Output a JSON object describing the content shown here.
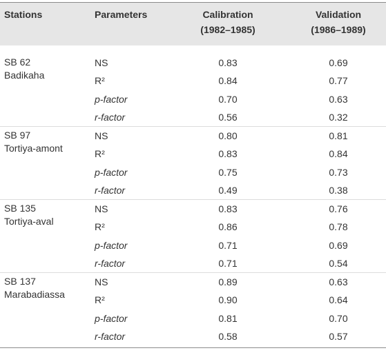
{
  "table": {
    "headers": {
      "stations": "Stations",
      "parameters": "Parameters",
      "calibration": [
        "Calibration",
        "(1982–1985)"
      ],
      "validation": [
        "Validation",
        "(1986–1989)"
      ]
    },
    "groups": [
      {
        "code": "SB 62",
        "name": "Badikaha",
        "rows": [
          [
            "NS",
            "0.83",
            "0.69"
          ],
          [
            "R²",
            "0.84",
            "0.77"
          ],
          [
            "p-factor",
            "0.70",
            "0.63"
          ],
          [
            "r-factor",
            "0.56",
            "0.32"
          ]
        ]
      },
      {
        "code": "SB 97",
        "name": "Tortiya-amont",
        "rows": [
          [
            "NS",
            "0.80",
            "0.81"
          ],
          [
            "R²",
            "0.83",
            "0.84"
          ],
          [
            "p-factor",
            "0.75",
            "0.73"
          ],
          [
            "r-factor",
            "0.49",
            "0.38"
          ]
        ]
      },
      {
        "code": "SB 135",
        "name": "Tortiya-aval",
        "rows": [
          [
            "NS",
            "0.83",
            "0.76"
          ],
          [
            "R²",
            "0.86",
            "0.78"
          ],
          [
            "p-factor",
            "0.71",
            "0.69"
          ],
          [
            "r-factor",
            "0.71",
            "0.54"
          ]
        ]
      },
      {
        "code": "SB 137",
        "name": "Marabadiassa",
        "rows": [
          [
            "NS",
            "0.89",
            "0.63"
          ],
          [
            "R²",
            "0.90",
            "0.64"
          ],
          [
            "p-factor",
            "0.81",
            "0.70"
          ],
          [
            "r-factor",
            "0.58",
            "0.57"
          ]
        ]
      }
    ]
  }
}
